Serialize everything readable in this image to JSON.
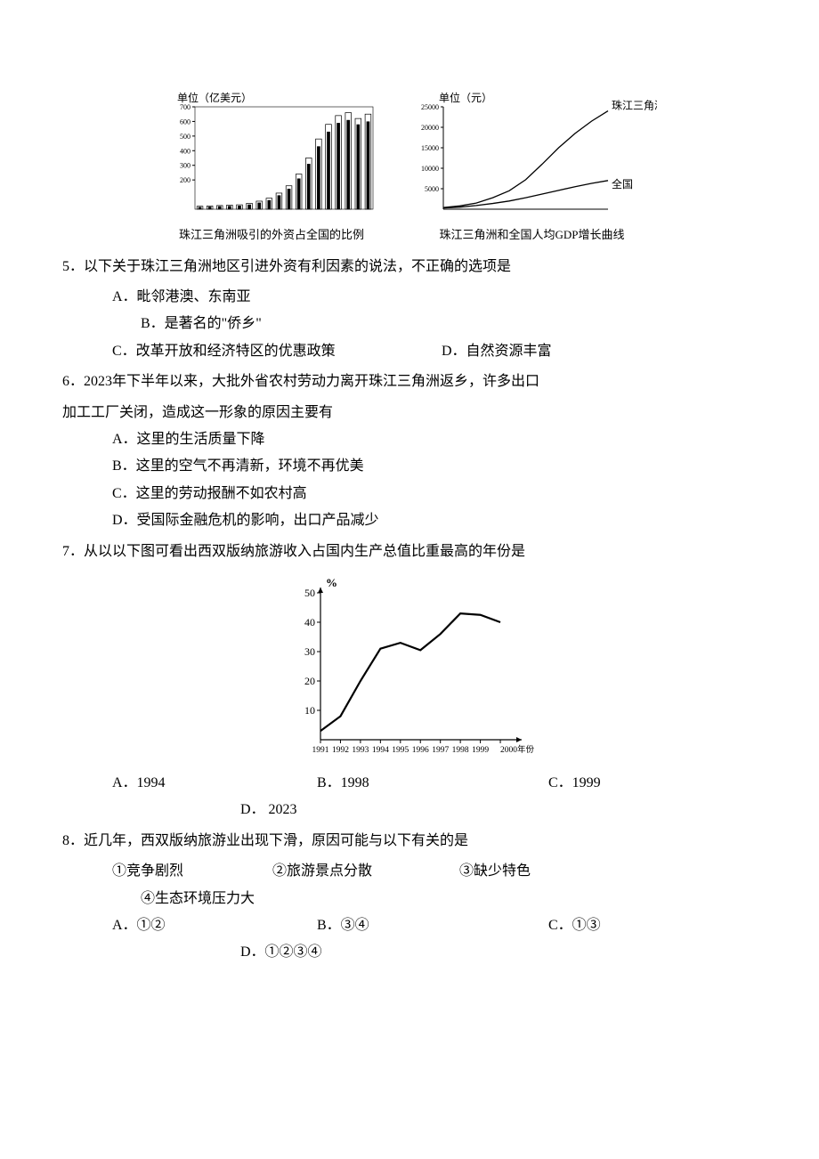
{
  "chart1": {
    "type": "bar",
    "unit_label": "单位（亿美元）",
    "caption": "珠江三角洲吸引的外资占全国的比例",
    "yticks": [
      "700",
      "600",
      "500",
      "400",
      "300",
      "200"
    ],
    "values": [
      20,
      22,
      25,
      28,
      30,
      40,
      55,
      75,
      110,
      160,
      240,
      350,
      480,
      580,
      640,
      660,
      620,
      650
    ],
    "back_values": [
      15,
      17,
      20,
      22,
      24,
      32,
      45,
      62,
      95,
      140,
      210,
      310,
      430,
      530,
      590,
      610,
      580,
      600
    ],
    "axis_color": "#000000",
    "bg": "#ffffff"
  },
  "chart2": {
    "type": "line",
    "unit_label": "单位（元）",
    "caption": "珠江三角洲和全国人均GDP增长曲线",
    "yticks": [
      "25000",
      "20000",
      "15000",
      "10000",
      "5000"
    ],
    "series": [
      {
        "name": "珠江三角洲",
        "label": "珠江三角洲",
        "points": [
          [
            0,
            400
          ],
          [
            18,
            800
          ],
          [
            36,
            1500
          ],
          [
            54,
            2800
          ],
          [
            72,
            4500
          ],
          [
            90,
            7200
          ],
          [
            108,
            11000
          ],
          [
            126,
            15000
          ],
          [
            144,
            18500
          ],
          [
            162,
            21500
          ],
          [
            180,
            24000
          ]
        ]
      },
      {
        "name": "全国",
        "label": "全国",
        "points": [
          [
            0,
            300
          ],
          [
            18,
            500
          ],
          [
            36,
            900
          ],
          [
            54,
            1400
          ],
          [
            72,
            2000
          ],
          [
            90,
            2800
          ],
          [
            108,
            3700
          ],
          [
            126,
            4600
          ],
          [
            144,
            5500
          ],
          [
            162,
            6300
          ],
          [
            180,
            7000
          ]
        ]
      }
    ],
    "ymax": 25000,
    "axis_color": "#000000"
  },
  "q5": {
    "stem": "5．以下关于珠江三角洲地区引进外资有利因素的说法，不正确的选项是",
    "A": "A．毗邻港澳、东南亚",
    "B": "B．是著名的\"侨乡\"",
    "C": "C．改革开放和经济特区的优惠政策",
    "D": "D．自然资源丰富"
  },
  "q6": {
    "stem1": "6．2023年下半年以来，大批外省农村劳动力离开珠江三角洲返乡，许多出口",
    "stem2": "加工工厂关闭，造成这一形象的原因主要有",
    "A": "A．这里的生活质量下降",
    "B": "B．这里的空气不再清新，环境不再优美",
    "C": "C．这里的劳动报酬不如农村高",
    "D": "D．受国际金融危机的影响，出口产品减少"
  },
  "q7": {
    "stem": "7．从以以下图可看出西双版纳旅游收入占国内生产总值比重最高的年份是",
    "chart": {
      "type": "line",
      "yticks": [
        "50",
        "40",
        "30",
        "20",
        "10"
      ],
      "ylabel": "%",
      "ymax": 50,
      "xticks": [
        "1991",
        "1992",
        "1993",
        "1994",
        "1995",
        "1996",
        "1997",
        "1998",
        "1999",
        "2000年份"
      ],
      "points": [
        [
          0,
          3
        ],
        [
          1,
          8
        ],
        [
          2,
          20
        ],
        [
          3,
          31
        ],
        [
          4,
          33
        ],
        [
          5,
          30.5
        ],
        [
          6,
          36
        ],
        [
          7,
          43
        ],
        [
          8,
          42.5
        ],
        [
          9,
          40
        ]
      ],
      "axis_color": "#000000"
    },
    "A": "A．1994",
    "B": "B．1998",
    "C": "C．1999",
    "D": "D．  2023"
  },
  "q8": {
    "stem": "8．近几年，西双版纳旅游业出现下滑，原因可能与以下有关的是",
    "i1": "①竞争剧烈",
    "i2": "②旅游景点分散",
    "i3": "③缺少特色",
    "i4": "④生态环境压力大",
    "A": "A．①②",
    "B": "B．③④",
    "C": "C．①③",
    "D": "D．①②③④"
  }
}
